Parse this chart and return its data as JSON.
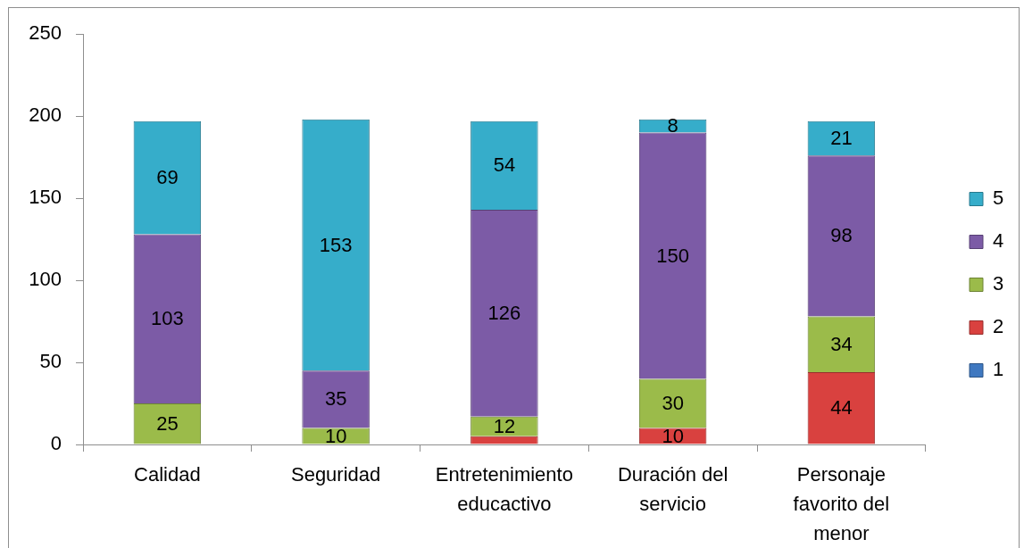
{
  "chart_data": {
    "type": "bar",
    "stacked": true,
    "categories": [
      "Calidad",
      "Seguridad",
      "Entretenimiento educactivo",
      "Duración del servicio",
      "Personaje favorito del menor"
    ],
    "series": [
      {
        "name": "1",
        "color": "#3f78c0",
        "values": [
          0,
          0,
          0,
          0,
          0
        ],
        "value_labels": [
          null,
          null,
          null,
          null,
          null
        ]
      },
      {
        "name": "2",
        "color": "#d9413f",
        "values": [
          0,
          0,
          5,
          10,
          44
        ],
        "value_labels": [
          null,
          null,
          null,
          "10",
          "44"
        ]
      },
      {
        "name": "3",
        "color": "#9bbb4a",
        "values": [
          25,
          10,
          12,
          30,
          34
        ],
        "value_labels": [
          "25",
          "10",
          "12",
          "30",
          "34"
        ]
      },
      {
        "name": "4",
        "color": "#7c5ba6",
        "values": [
          103,
          35,
          126,
          150,
          98
        ],
        "value_labels": [
          "103",
          "35",
          "126",
          "150",
          "98"
        ]
      },
      {
        "name": "5",
        "color": "#36adca",
        "values": [
          69,
          153,
          54,
          8,
          21
        ],
        "value_labels": [
          "69",
          "153",
          "54",
          "8",
          "21"
        ]
      }
    ],
    "ylim": [
      0,
      250
    ],
    "yticks": [
      0,
      50,
      100,
      150,
      200,
      250
    ],
    "grid": false,
    "legend": "right"
  }
}
